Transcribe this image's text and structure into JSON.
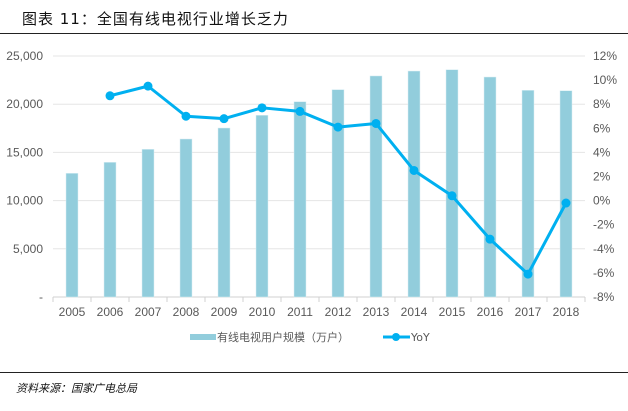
{
  "title": "图表 11：全国有线电视行业增长乏力",
  "source": "资料来源：国家广电总局",
  "colors": {
    "bar": "#92CDDC",
    "line": "#00B0F0",
    "grid": "#E5E5E5",
    "text": "#595959"
  },
  "chart_data": {
    "type": "bar+line",
    "categories": [
      "2005",
      "2006",
      "2007",
      "2008",
      "2009",
      "2010",
      "2011",
      "2012",
      "2013",
      "2014",
      "2015",
      "2016",
      "2017",
      "2018"
    ],
    "series": [
      {
        "name": "有线电视用户规模（万户）",
        "type": "bar",
        "axis": "left",
        "values": [
          12830,
          13970,
          15320,
          16390,
          17530,
          18850,
          20260,
          21510,
          22930,
          23440,
          23580,
          22820,
          21440,
          21400
        ]
      },
      {
        "name": "YoY",
        "type": "line",
        "axis": "right",
        "unit": "%",
        "values": [
          null,
          8.7,
          9.5,
          7.0,
          6.8,
          7.7,
          7.4,
          6.1,
          6.4,
          2.5,
          0.4,
          -3.2,
          -6.1,
          -0.2
        ]
      }
    ],
    "left_axis": {
      "ylim": [
        0,
        25000
      ],
      "ticks": [
        "0",
        "5,000",
        "10,000",
        "15,000",
        "20,000",
        "25,000"
      ]
    },
    "right_axis": {
      "ylim": [
        -8,
        12
      ],
      "ticks": [
        "-8%",
        "-6%",
        "-4%",
        "-2%",
        "0%",
        "2%",
        "4%",
        "6%",
        "8%",
        "10%",
        "12%"
      ]
    },
    "grid": true,
    "legend_position": "bottom"
  }
}
